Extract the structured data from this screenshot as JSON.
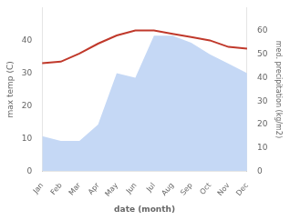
{
  "chart_data": {
    "type": "line",
    "xlabel": "date (month)",
    "ylabel": "max temp (C)",
    "y2label": "med. precipitation (kg/m2)",
    "categories": [
      "Jan",
      "Feb",
      "Mar",
      "Apr",
      "May",
      "Jun",
      "Jul",
      "Aug",
      "Sep",
      "Oct",
      "Nov",
      "Dec"
    ],
    "series": [
      {
        "type": "area",
        "axis": "y2",
        "color": "#c5d8f5",
        "values": [
          15,
          13,
          13,
          20,
          42,
          40,
          58,
          58,
          55,
          50,
          46,
          42
        ]
      },
      {
        "type": "line",
        "color": "#c0392b",
        "values": [
          33,
          33.5,
          36,
          39,
          41.5,
          43,
          43,
          42,
          41,
          40,
          38,
          37.5
        ]
      }
    ],
    "ylim": [
      0,
      50
    ],
    "yticks": [
      0,
      10,
      20,
      30,
      40
    ],
    "y2lim": [
      0,
      70
    ],
    "y2ticks": [
      0,
      10,
      20,
      30,
      40,
      50,
      60
    ],
    "grid": false
  }
}
